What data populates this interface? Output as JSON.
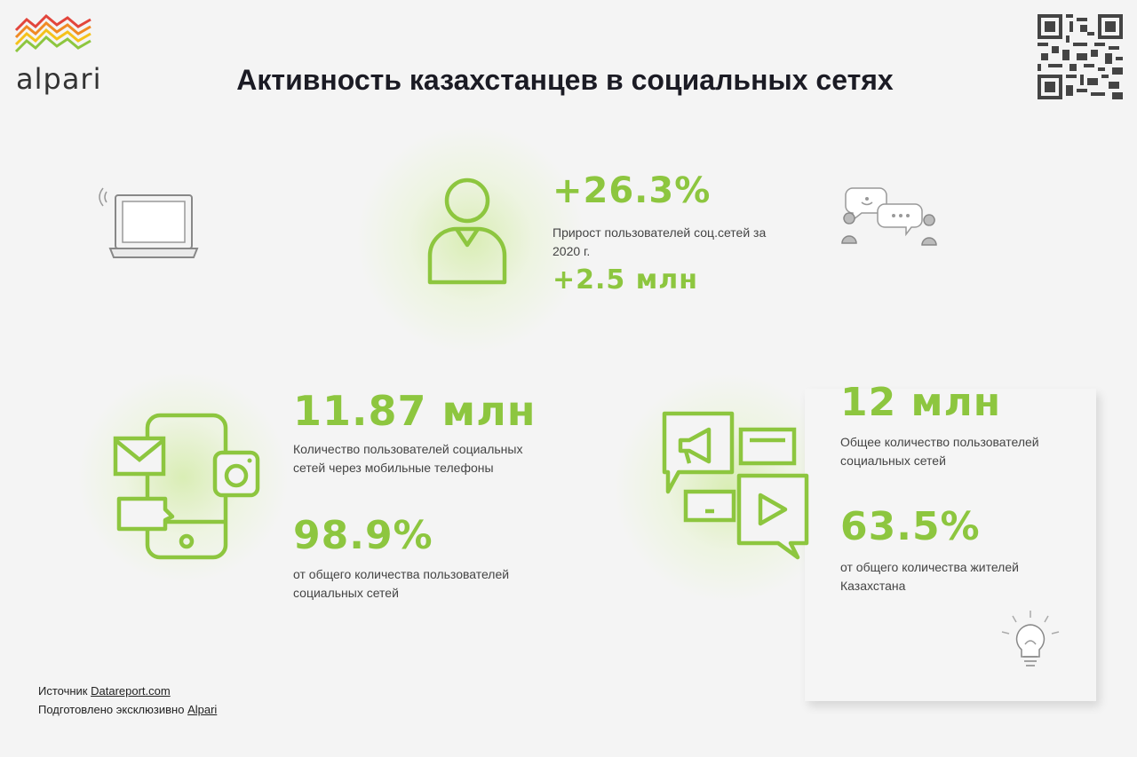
{
  "brand": {
    "name": "alpari"
  },
  "title": "Активность казахстанцев в социальных сетях",
  "stats": {
    "growth": {
      "percent": "+26.3%",
      "description": "Прирост пользователей соц.сетей за 2020 г.",
      "absolute": "+2.5 млн"
    },
    "mobile": {
      "value": "11.87 млн",
      "value_desc": "Количество пользователей социальных сетей через мобильные телефоны",
      "percent": "98.9%",
      "percent_desc": "от общего количества пользователей социальных сетей"
    },
    "total": {
      "value": "12 млн",
      "value_desc": "Общее количество пользователей социальных сетей",
      "percent": "63.5%",
      "percent_desc": "от общего количества жителей Казахстана"
    }
  },
  "footer": {
    "source_label": "Источник",
    "source_link": "Datareport.com",
    "prepared_label": "Подготовлено эксклюзивно",
    "prepared_link": "Alpari"
  },
  "colors": {
    "accent": "#8dc63f",
    "title": "#1b1b24",
    "background": "#f4f4f4"
  },
  "icons": [
    "alpari-logo-icon",
    "qr-code-icon",
    "laptop-icon",
    "user-icon",
    "chat-bubbles-icon",
    "smartphone-icon",
    "mail-icon",
    "camera-icon",
    "megaphone-icon",
    "play-icon",
    "lightbulb-icon"
  ]
}
